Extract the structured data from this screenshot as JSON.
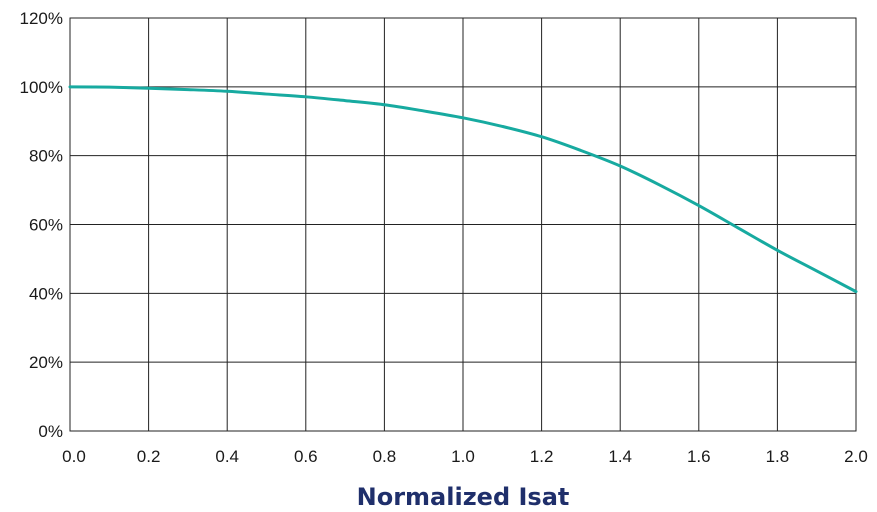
{
  "chart_data": {
    "type": "line",
    "title": "",
    "xlabel": "Normalized Isat",
    "ylabel": "",
    "xlim": [
      0,
      2.0
    ],
    "ylim": [
      0,
      120
    ],
    "x_ticks": [
      "0.0",
      "0.2",
      "0.4",
      "0.6",
      "0.8",
      "1.0",
      "1.2",
      "1.4",
      "1.6",
      "1.8",
      "2.0"
    ],
    "y_ticks": [
      "0%",
      "20%",
      "40%",
      "60%",
      "80%",
      "100%",
      "120%"
    ],
    "grid": true,
    "series": [
      {
        "color": "#17aaa0",
        "x": [
          0.0,
          0.1,
          0.2,
          0.3,
          0.4,
          0.5,
          0.6,
          0.7,
          0.8,
          0.9,
          1.0,
          1.1,
          1.2,
          1.3,
          1.4,
          1.5,
          1.6,
          1.7,
          1.8,
          1.9,
          2.0
        ],
        "y": [
          100,
          99.9,
          99.6,
          99.2,
          98.7,
          97.9,
          97.1,
          96.0,
          94.8,
          93.0,
          91.0,
          88.5,
          85.5,
          81.5,
          77.0,
          71.5,
          65.5,
          59.0,
          52.5,
          46.5,
          40.5
        ]
      }
    ]
  }
}
